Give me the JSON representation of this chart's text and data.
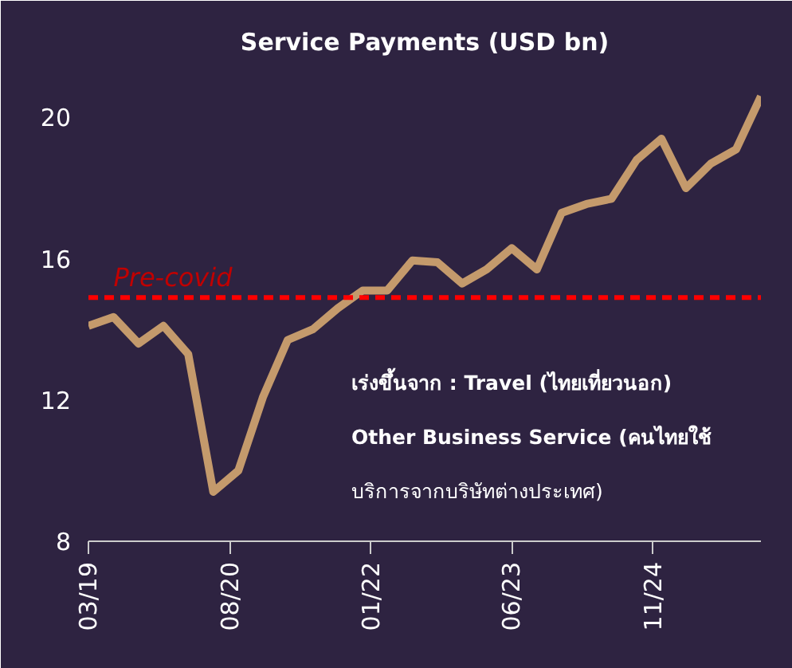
{
  "chart_data": {
    "type": "line",
    "title": "Service Payments (USD bn)",
    "x": [
      "2019-03",
      "2019-06",
      "2019-09",
      "2019-12",
      "2020-03",
      "2020-06",
      "2020-09",
      "2020-12",
      "2021-03",
      "2021-06",
      "2021-09",
      "2021-12",
      "2022-03",
      "2022-06",
      "2022-09",
      "2022-12",
      "2023-03",
      "2023-06",
      "2023-09",
      "2023-12",
      "2024-03",
      "2024-06",
      "2024-09",
      "2024-12",
      "2025-03",
      "2025-06",
      "2025-09",
      "2025-12"
    ],
    "series": [
      {
        "color": "#c49a6c",
        "values": [
          14.1,
          14.35,
          13.6,
          14.1,
          13.3,
          9.4,
          10.0,
          12.1,
          13.7,
          14.0,
          14.6,
          15.1,
          15.1,
          15.95,
          15.9,
          15.3,
          15.7,
          16.3,
          15.7,
          17.3,
          17.55,
          17.7,
          18.8,
          19.4,
          18.0,
          18.7,
          19.1,
          20.6
        ]
      }
    ],
    "xlim": [
      "2019-03",
      "2025-12"
    ],
    "xticks": [
      {
        "value": "2019-03",
        "label": "03/19"
      },
      {
        "value": "2020-08",
        "label": "08/20"
      },
      {
        "value": "2022-01",
        "label": "01/22"
      },
      {
        "value": "2023-06",
        "label": "06/23"
      },
      {
        "value": "2024-11",
        "label": "11/24"
      }
    ],
    "ylim": [
      8,
      21.5
    ],
    "yticks": [
      8,
      12,
      16,
      20
    ],
    "ref_lines": [
      {
        "axis": "y",
        "value": 14.9,
        "label": "Pre-covid",
        "color": "#ff0000",
        "line_style": "dashed"
      }
    ],
    "annotations": [
      "เร่งขึ้นจาก : Travel (ไทยเที่ยวนอก)",
      "Other Business Service (คนไทยใช้",
      "บริการจากบริษัทต่างประเทศ)"
    ],
    "grid": false,
    "marker": "none",
    "line_style": "solid"
  }
}
